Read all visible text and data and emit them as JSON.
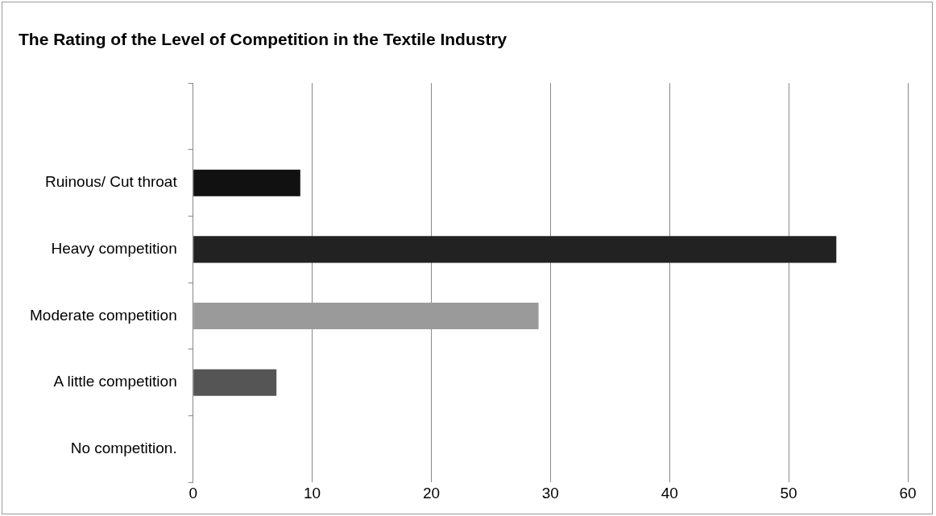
{
  "chart_data": {
    "type": "bar",
    "orientation": "horizontal",
    "title": "The Rating of the Level of Competition in the Textile Industry",
    "categories": [
      null,
      "Ruinous/ Cut throat",
      "Heavy competition",
      "Moderate competition",
      "A little competition",
      "No competition."
    ],
    "values": [
      null,
      9,
      54,
      29,
      7,
      0
    ],
    "colors": [
      "#000000",
      "#111111",
      "#222222",
      "#9a9a9a",
      "#555555",
      "#000000"
    ],
    "xlim": [
      0,
      60
    ],
    "xticks": [
      0,
      10,
      20,
      30,
      40,
      50,
      60
    ],
    "grid": "x",
    "legend": false
  }
}
